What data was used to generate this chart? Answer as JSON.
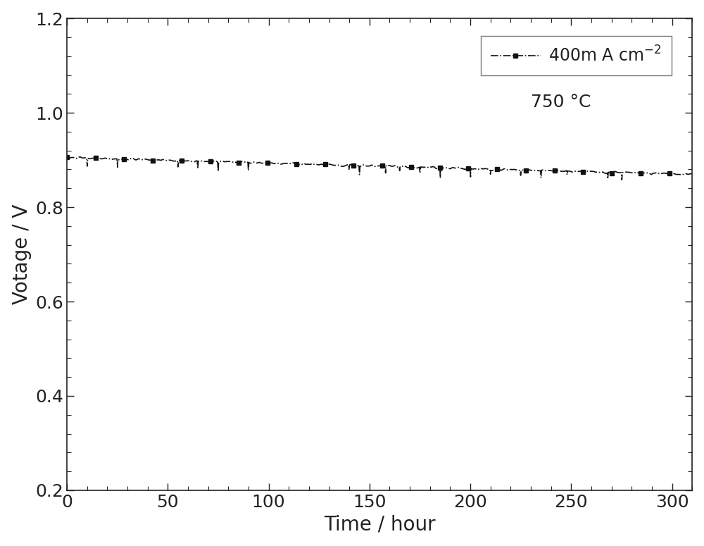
{
  "title": "",
  "xlabel": "Time / hour",
  "ylabel": "Votage / V",
  "xlim": [
    0,
    310
  ],
  "ylim": [
    0.2,
    1.2
  ],
  "xticks": [
    0,
    50,
    100,
    150,
    200,
    250,
    300
  ],
  "yticks": [
    0.2,
    0.4,
    0.6,
    0.8,
    1.0,
    1.2
  ],
  "legend_label": "400m A cm$^{-2}$",
  "annotation": "750 °C",
  "line_color": "#111111",
  "background_color": "#ffffff",
  "xlabel_fontsize": 20,
  "ylabel_fontsize": 20,
  "tick_fontsize": 18,
  "legend_fontsize": 17,
  "annotation_fontsize": 18
}
